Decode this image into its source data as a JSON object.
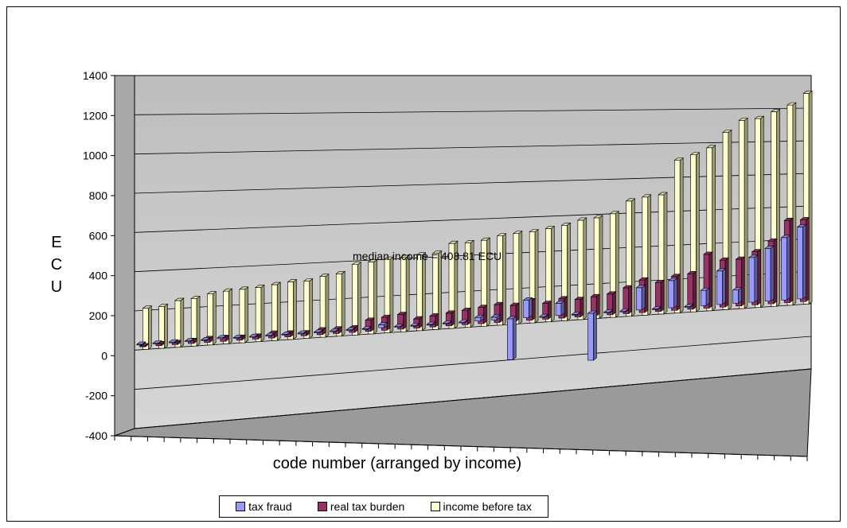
{
  "chart_data": {
    "type": "bar",
    "ylabel": "ECU",
    "xlabel": "code number (arranged by income)",
    "ylim": [
      -400,
      1400
    ],
    "yticks": [
      -400,
      -200,
      0,
      200,
      400,
      600,
      800,
      1000,
      1200,
      1400
    ],
    "annotation": "median income = 408.81 ECU",
    "grid": true,
    "legend_position": "bottom",
    "series": [
      {
        "name": "tax fraud",
        "color": "#9999FF",
        "values": [
          0,
          0,
          0,
          0,
          0,
          5,
          0,
          0,
          0,
          0,
          0,
          0,
          0,
          0,
          0,
          15,
          0,
          0,
          0,
          0,
          0,
          20,
          15,
          -230,
          100,
          0,
          70,
          0,
          -270,
          0,
          0,
          130,
          0,
          160,
          0,
          90,
          200,
          80,
          270,
          320,
          380,
          440
        ]
      },
      {
        "name": "real tax burden",
        "color": "#993366",
        "values": [
          5,
          10,
          10,
          15,
          20,
          20,
          15,
          15,
          25,
          20,
          15,
          25,
          25,
          25,
          60,
          70,
          80,
          50,
          60,
          70,
          80,
          90,
          100,
          90,
          110,
          90,
          110,
          100,
          110,
          120,
          150,
          190,
          170,
          200,
          210,
          320,
          280,
          280,
          320,
          380,
          500,
          500
        ]
      },
      {
        "name": "income before tax",
        "color": "#FFFFCC",
        "values": [
          210,
          215,
          240,
          245,
          265,
          275,
          280,
          285,
          295,
          305,
          305,
          325,
          335,
          380,
          390,
          400,
          405,
          415,
          420,
          470,
          470,
          480,
          500,
          510,
          515,
          530,
          545,
          570,
          580,
          600,
          670,
          690,
          700,
          900,
          930,
          970,
          1060,
          1130,
          1140,
          1180,
          1220,
          1290
        ]
      }
    ]
  }
}
